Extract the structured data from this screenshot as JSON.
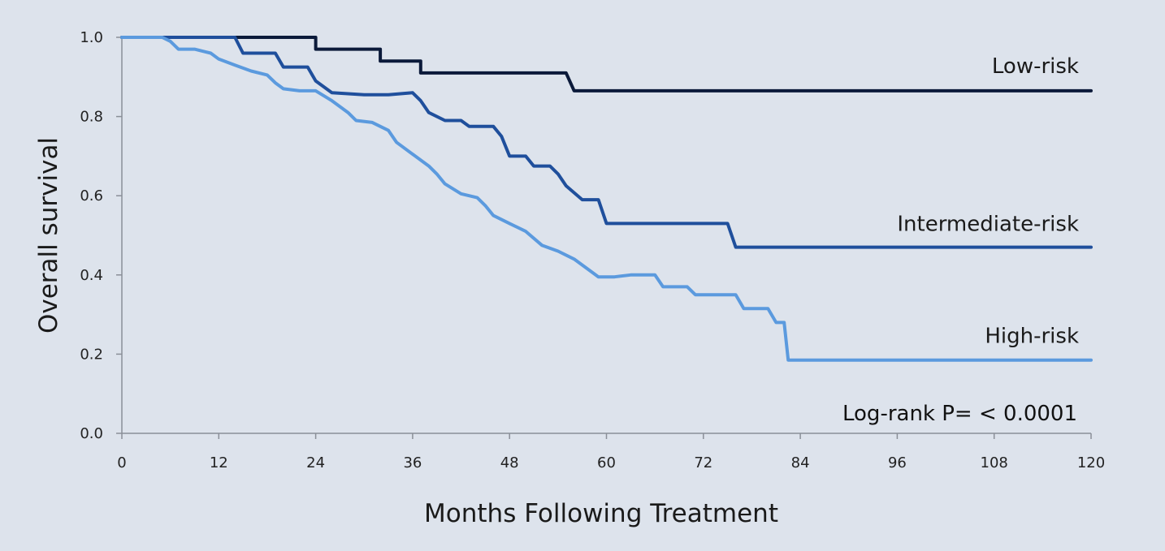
{
  "chart_data": {
    "type": "line",
    "subtype": "kaplan-meier step",
    "title": "",
    "xlabel": "Months Following Treatment",
    "ylabel": "Overall survival",
    "xlim": [
      0,
      120
    ],
    "ylim": [
      0,
      1.0
    ],
    "xticks": [
      0,
      12,
      24,
      36,
      48,
      60,
      72,
      84,
      96,
      108,
      120
    ],
    "yticks": [
      "0.0",
      "0.2",
      "0.4",
      "0.6",
      "0.8",
      "1.0"
    ],
    "grid": false,
    "annotation": "Log-rank P= < 0.0001",
    "series": [
      {
        "name": "Low-risk",
        "color": "#0b1a3a",
        "points": [
          [
            0,
            1.0
          ],
          [
            24,
            1.0
          ],
          [
            24,
            0.97
          ],
          [
            32,
            0.97
          ],
          [
            32,
            0.94
          ],
          [
            37,
            0.94
          ],
          [
            37,
            0.91
          ],
          [
            55,
            0.91
          ],
          [
            56,
            0.865
          ],
          [
            120,
            0.865
          ]
        ]
      },
      {
        "name": "Intermediate-risk",
        "color": "#1f4f9c",
        "points": [
          [
            0,
            1.0
          ],
          [
            14,
            1.0
          ],
          [
            15,
            0.96
          ],
          [
            19,
            0.96
          ],
          [
            20,
            0.925
          ],
          [
            23,
            0.925
          ],
          [
            24,
            0.89
          ],
          [
            26,
            0.86
          ],
          [
            30,
            0.855
          ],
          [
            33,
            0.855
          ],
          [
            36,
            0.86
          ],
          [
            37,
            0.84
          ],
          [
            38,
            0.81
          ],
          [
            40,
            0.79
          ],
          [
            42,
            0.79
          ],
          [
            43,
            0.775
          ],
          [
            46,
            0.775
          ],
          [
            47,
            0.75
          ],
          [
            48,
            0.7
          ],
          [
            50,
            0.7
          ],
          [
            51,
            0.675
          ],
          [
            53,
            0.675
          ],
          [
            54,
            0.655
          ],
          [
            55,
            0.625
          ],
          [
            57,
            0.59
          ],
          [
            59,
            0.59
          ],
          [
            60,
            0.53
          ],
          [
            75,
            0.53
          ],
          [
            76,
            0.47
          ],
          [
            120,
            0.47
          ]
        ]
      },
      {
        "name": "High-risk",
        "color": "#5b9ade",
        "points": [
          [
            0,
            1.0
          ],
          [
            5,
            1.0
          ],
          [
            6,
            0.99
          ],
          [
            7,
            0.97
          ],
          [
            9,
            0.97
          ],
          [
            11,
            0.96
          ],
          [
            12,
            0.945
          ],
          [
            14,
            0.93
          ],
          [
            16,
            0.915
          ],
          [
            18,
            0.905
          ],
          [
            19,
            0.885
          ],
          [
            20,
            0.87
          ],
          [
            22,
            0.865
          ],
          [
            24,
            0.865
          ],
          [
            26,
            0.84
          ],
          [
            28,
            0.81
          ],
          [
            29,
            0.79
          ],
          [
            31,
            0.785
          ],
          [
            33,
            0.765
          ],
          [
            34,
            0.735
          ],
          [
            36,
            0.705
          ],
          [
            38,
            0.675
          ],
          [
            39,
            0.655
          ],
          [
            40,
            0.63
          ],
          [
            42,
            0.605
          ],
          [
            44,
            0.595
          ],
          [
            45,
            0.575
          ],
          [
            46,
            0.55
          ],
          [
            48,
            0.53
          ],
          [
            50,
            0.51
          ],
          [
            52,
            0.475
          ],
          [
            54,
            0.46
          ],
          [
            56,
            0.44
          ],
          [
            58,
            0.41
          ],
          [
            59,
            0.395
          ],
          [
            61,
            0.395
          ],
          [
            63,
            0.4
          ],
          [
            66,
            0.4
          ],
          [
            67,
            0.37
          ],
          [
            70,
            0.37
          ],
          [
            71,
            0.35
          ],
          [
            76,
            0.35
          ],
          [
            77,
            0.315
          ],
          [
            80,
            0.315
          ],
          [
            81,
            0.28
          ],
          [
            82,
            0.28
          ],
          [
            82.5,
            0.185
          ],
          [
            120,
            0.185
          ]
        ]
      }
    ]
  }
}
